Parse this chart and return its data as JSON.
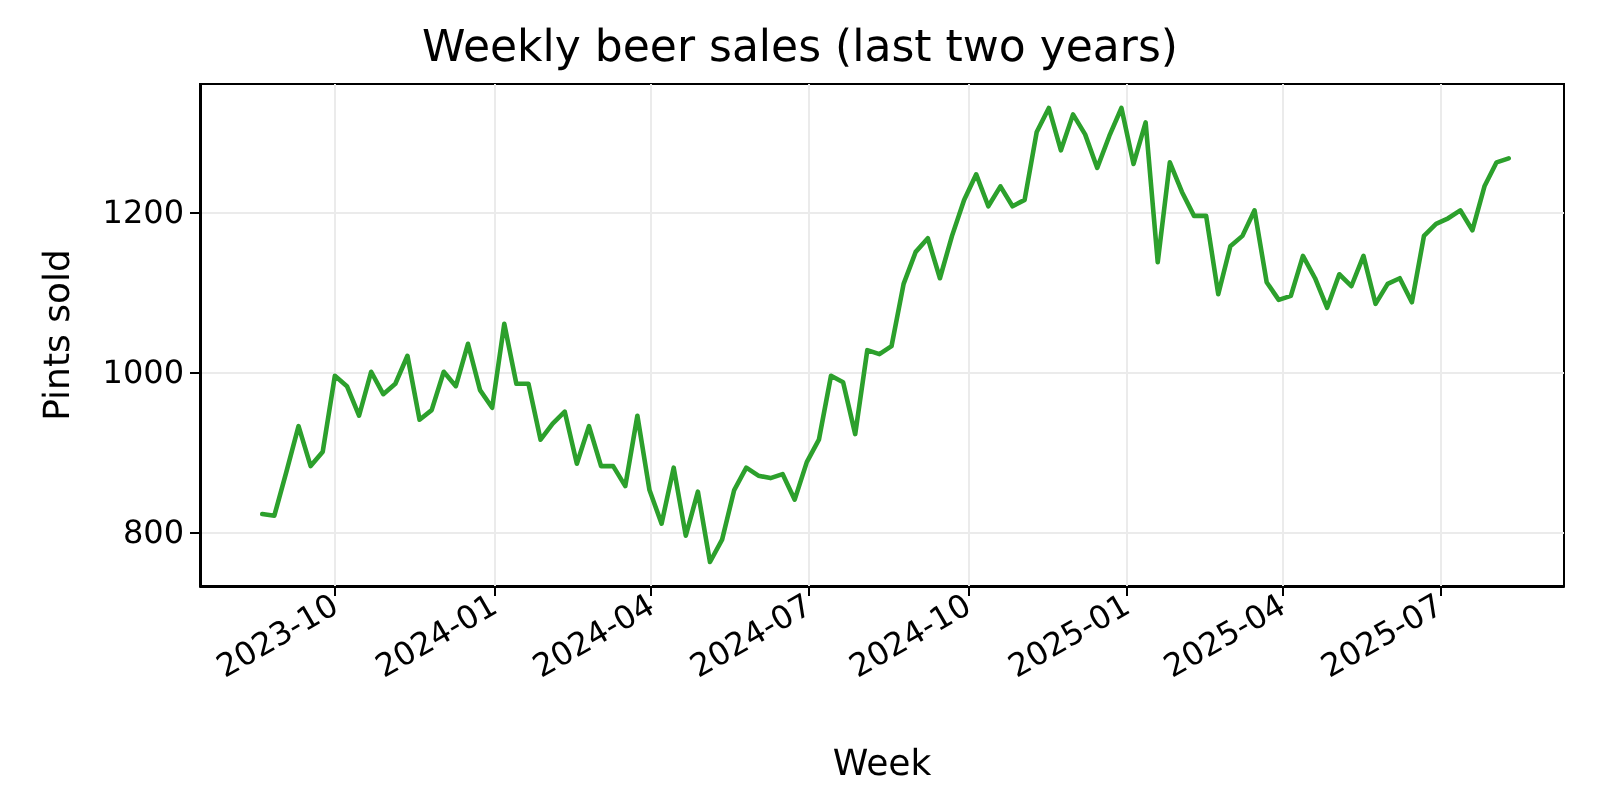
{
  "chart_data": {
    "type": "line",
    "title": "Weekly beer sales (last two years)",
    "xlabel": "Week",
    "ylabel": "Pints sold",
    "x": [
      "2023-08-20",
      "2023-08-27",
      "2023-09-03",
      "2023-09-10",
      "2023-09-17",
      "2023-09-24",
      "2023-10-01",
      "2023-10-08",
      "2023-10-15",
      "2023-10-22",
      "2023-10-29",
      "2023-11-05",
      "2023-11-12",
      "2023-11-19",
      "2023-11-26",
      "2023-12-03",
      "2023-12-10",
      "2023-12-17",
      "2023-12-24",
      "2023-12-31",
      "2024-01-07",
      "2024-01-14",
      "2024-01-21",
      "2024-01-28",
      "2024-02-04",
      "2024-02-11",
      "2024-02-18",
      "2024-02-25",
      "2024-03-03",
      "2024-03-10",
      "2024-03-17",
      "2024-03-24",
      "2024-03-31",
      "2024-04-07",
      "2024-04-14",
      "2024-04-21",
      "2024-04-28",
      "2024-05-05",
      "2024-05-12",
      "2024-05-19",
      "2024-05-26",
      "2024-06-02",
      "2024-06-09",
      "2024-06-16",
      "2024-06-23",
      "2024-06-30",
      "2024-07-07",
      "2024-07-14",
      "2024-07-21",
      "2024-07-28",
      "2024-08-04",
      "2024-08-11",
      "2024-08-18",
      "2024-08-25",
      "2024-09-01",
      "2024-09-08",
      "2024-09-15",
      "2024-09-22",
      "2024-09-29",
      "2024-10-06",
      "2024-10-13",
      "2024-10-20",
      "2024-10-27",
      "2024-11-03",
      "2024-11-10",
      "2024-11-17",
      "2024-11-24",
      "2024-12-01",
      "2024-12-08",
      "2024-12-15",
      "2024-12-22",
      "2024-12-29",
      "2025-01-05",
      "2025-01-12",
      "2025-01-19",
      "2025-01-26",
      "2025-02-02",
      "2025-02-09",
      "2025-02-16",
      "2025-02-23",
      "2025-03-02",
      "2025-03-09",
      "2025-03-16",
      "2025-03-23",
      "2025-03-30",
      "2025-04-06",
      "2025-04-13",
      "2025-04-20",
      "2025-04-27",
      "2025-05-04",
      "2025-05-11",
      "2025-05-18",
      "2025-05-25",
      "2025-06-01",
      "2025-06-08",
      "2025-06-15",
      "2025-06-22",
      "2025-06-29",
      "2025-07-06",
      "2025-07-13",
      "2025-07-20",
      "2025-07-27",
      "2025-08-03",
      "2025-08-10"
    ],
    "series": [
      {
        "color": "#2ca02c",
        "values": [
          822,
          820,
          875,
          932,
          882,
          900,
          995,
          982,
          945,
          1000,
          972,
          985,
          1020,
          940,
          952,
          1000,
          982,
          1035,
          977,
          955,
          1060,
          985,
          985,
          915,
          935,
          950,
          885,
          932,
          882,
          882,
          857,
          945,
          852,
          810,
          880,
          795,
          850,
          762,
          790,
          852,
          880,
          870,
          867,
          872,
          840,
          887,
          915,
          995,
          987,
          922,
          1027,
          1022,
          1032,
          1110,
          1150,
          1167,
          1117,
          1170,
          1215,
          1247,
          1207,
          1232,
          1207,
          1215,
          1300,
          1330,
          1277,
          1322,
          1297,
          1255,
          1295,
          1330,
          1260,
          1312,
          1137,
          1262,
          1225,
          1195,
          1195,
          1097,
          1157,
          1170,
          1202,
          1112,
          1090,
          1095,
          1145,
          1117,
          1080,
          1122,
          1107,
          1145,
          1085,
          1110,
          1117,
          1087,
          1170,
          1185,
          1192,
          1202,
          1177,
          1232,
          1262,
          1267
        ]
      }
    ],
    "xlim": [
      "2023-07-15",
      "2025-09-11"
    ],
    "xticks": [
      "2023-10",
      "2024-01",
      "2024-04",
      "2024-07",
      "2024-10",
      "2025-01",
      "2025-04",
      "2025-07"
    ],
    "ylim": [
      732,
      1360
    ],
    "yticks": [
      800,
      1000,
      1200
    ],
    "grid": true,
    "line_style": "solid",
    "marker": "none"
  }
}
